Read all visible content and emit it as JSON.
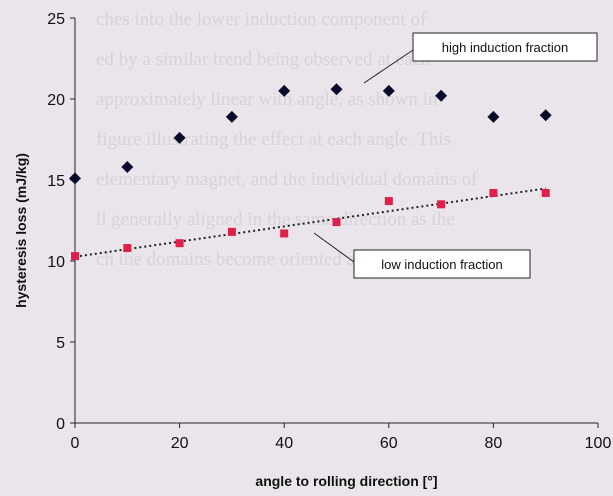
{
  "background_text": [
    "",
    "",
    "ches into the lower induction component of",
    "ed by a similar trend being observed at each",
    "approximately linear with angle, as shown in",
    "figure illustrating the effect at each angle. This",
    "elementary magnet, and the individual domains of",
    "ll generally aligned in the same direction as the",
    "ch the domains become oriented according to",
    "",
    "",
    ""
  ],
  "chart_data": {
    "type": "scatter",
    "xlabel": "angle to rolling direction [°]",
    "ylabel": "hysteresis loss (mJ/kg)",
    "xlim": [
      0,
      100
    ],
    "ylim": [
      0,
      25
    ],
    "xticks": [
      "0",
      "20",
      "40",
      "60",
      "80",
      "100"
    ],
    "yticks": [
      "0",
      "5",
      "10",
      "15",
      "20",
      "25"
    ],
    "grid": false,
    "series": [
      {
        "name": "high induction fraction",
        "marker": "diamond",
        "color": "#0a0a2a",
        "x": [
          0,
          10,
          20,
          30,
          40,
          50,
          60,
          70,
          80,
          90
        ],
        "y": [
          15.1,
          15.8,
          17.6,
          18.9,
          20.5,
          20.6,
          20.5,
          20.2,
          18.9,
          19.0
        ]
      },
      {
        "name": "low induction fraction",
        "marker": "square",
        "color": "#e0204a",
        "trendline": true,
        "x": [
          0,
          10,
          20,
          30,
          40,
          50,
          60,
          70,
          80,
          90
        ],
        "y": [
          10.3,
          10.8,
          11.1,
          11.8,
          11.7,
          12.4,
          13.7,
          13.5,
          14.2,
          14.2
        ]
      }
    ],
    "annotations": [
      {
        "text": "high induction fraction",
        "target_series": 0
      },
      {
        "text": "low induction fraction",
        "target_series": 1
      }
    ]
  }
}
